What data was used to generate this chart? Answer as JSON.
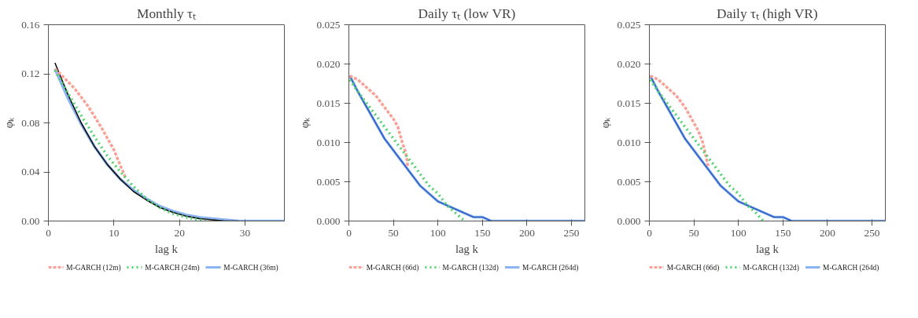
{
  "chart_data": [
    {
      "type": "line",
      "title": "Monthly τₜ",
      "xlabel": "lag k",
      "ylabel": "φₖ",
      "xlim": [
        0,
        36
      ],
      "ylim": [
        0,
        0.16
      ],
      "xticks": [
        0,
        10,
        20,
        30
      ],
      "yticks": [
        {
          "value": 0,
          "label": "0.00"
        },
        0.04,
        0.08,
        0.12,
        0.16
      ],
      "grid": false,
      "legend": "bottom",
      "series": [
        {
          "name": "M-GARCH (12m)",
          "color": "#f9a097",
          "line_style": "dashed",
          "x": [
            1,
            2,
            4,
            6,
            8,
            10,
            11,
            11.8
          ],
          "values": [
            0.124,
            0.119,
            0.108,
            0.094,
            0.077,
            0.058,
            0.045,
            0.035
          ]
        },
        {
          "name": "M-GARCH (24m)",
          "color": "#4fd36d",
          "line_style": "dotted",
          "x": [
            1,
            3,
            5,
            7,
            9,
            11,
            13,
            15,
            17,
            19,
            21,
            23,
            24
          ],
          "values": [
            0.123,
            0.104,
            0.086,
            0.069,
            0.053,
            0.04,
            0.028,
            0.018,
            0.011,
            0.006,
            0.003,
            0.001,
            0
          ]
        },
        {
          "name": "M-GARCH (36m)",
          "color": "#8cb4f2",
          "line_style": "solid",
          "x": [
            1,
            3,
            5,
            7,
            9,
            11,
            13,
            15,
            17,
            19,
            21,
            23,
            25,
            27,
            29,
            31,
            33,
            36
          ],
          "values": [
            0.124,
            0.1,
            0.079,
            0.061,
            0.046,
            0.034,
            0.025,
            0.018,
            0.012,
            0.008,
            0.005,
            0.003,
            0.002,
            0.001,
            0,
            0,
            0,
            0
          ]
        },
        {
          "color": "#111111",
          "line_style": "solid",
          "x": [
            1,
            3,
            5,
            7,
            9,
            11,
            13,
            15,
            17,
            19,
            21,
            23,
            25,
            27,
            29
          ],
          "values": [
            0.129,
            0.103,
            0.08,
            0.061,
            0.046,
            0.034,
            0.024,
            0.017,
            0.011,
            0.007,
            0.004,
            0.002,
            0.001,
            0,
            0
          ]
        }
      ]
    },
    {
      "type": "line",
      "title": "Daily τₜ (low VR)",
      "xlabel": "lag k",
      "ylabel": "φₖ",
      "xlim": [
        0,
        265
      ],
      "ylim": [
        0,
        0.025
      ],
      "xticks": [
        0,
        50,
        100,
        150,
        200,
        250
      ],
      "yticks": [
        {
          "value": 0,
          "label": "0.000"
        },
        0.005,
        {
          "value": 0.01,
          "label": "0.010"
        },
        0.015,
        {
          "value": 0.02,
          "label": "0.020"
        },
        0.025
      ],
      "grid": false,
      "legend": "bottom",
      "series": [
        {
          "name": "M-GARCH (66d)",
          "color": "#f9a097",
          "line_style": "dashed",
          "x": [
            1,
            10,
            20,
            30,
            40,
            50,
            55,
            60,
            63,
            65,
            66
          ],
          "values": [
            0.0185,
            0.018,
            0.017,
            0.016,
            0.0145,
            0.013,
            0.012,
            0.01,
            0.009,
            0.008,
            0.007
          ]
        },
        {
          "name": "M-GARCH (132d)",
          "color": "#4fd36d",
          "line_style": "dotted",
          "x": [
            1,
            10,
            20,
            30,
            40,
            50,
            60,
            70,
            80,
            90,
            100,
            110,
            120,
            130
          ],
          "values": [
            0.018,
            0.0165,
            0.015,
            0.0135,
            0.012,
            0.0105,
            0.009,
            0.0075,
            0.006,
            0.0045,
            0.0035,
            0.002,
            0.001,
            0
          ]
        },
        {
          "name": "M-GARCH (264d)",
          "color": "#8cb4f2",
          "line_style": "solid",
          "x": [
            1,
            10,
            20,
            30,
            40,
            50,
            60,
            70,
            80,
            90,
            100,
            110,
            120,
            130,
            140,
            150,
            160,
            175,
            200,
            265
          ],
          "values": [
            0.0185,
            0.0165,
            0.0145,
            0.0125,
            0.0105,
            0.009,
            0.0075,
            0.006,
            0.0045,
            0.0035,
            0.0025,
            0.002,
            0.0015,
            0.001,
            0.0005,
            0.0005,
            0,
            0,
            0,
            0
          ]
        },
        {
          "color": "#2f5fbf",
          "line_style": "solid",
          "x": [
            1,
            10,
            20,
            30,
            40,
            50,
            60,
            70,
            80,
            90,
            100,
            110,
            120,
            130,
            140,
            150,
            160,
            175,
            200,
            265
          ],
          "values": [
            0.0185,
            0.0165,
            0.0145,
            0.0125,
            0.0105,
            0.009,
            0.0075,
            0.006,
            0.0045,
            0.0035,
            0.0025,
            0.002,
            0.0015,
            0.001,
            0.0005,
            0.0005,
            0,
            0,
            0,
            0
          ]
        }
      ]
    },
    {
      "type": "line",
      "title": "Daily τₜ (high VR)",
      "xlabel": "lag k",
      "ylabel": "φₖ",
      "xlim": [
        0,
        265
      ],
      "ylim": [
        0,
        0.025
      ],
      "xticks": [
        0,
        50,
        100,
        150,
        200,
        250
      ],
      "yticks": [
        {
          "value": 0,
          "label": "0.000"
        },
        0.005,
        {
          "value": 0.01,
          "label": "0.010"
        },
        0.015,
        {
          "value": 0.02,
          "label": "0.020"
        },
        0.025
      ],
      "grid": false,
      "legend": "bottom",
      "series": [
        {
          "name": "M-GARCH (66d)",
          "color": "#f9a097",
          "line_style": "dashed",
          "x": [
            1,
            10,
            20,
            30,
            40,
            50,
            55,
            60,
            63,
            65,
            66
          ],
          "values": [
            0.0185,
            0.018,
            0.017,
            0.016,
            0.0145,
            0.0125,
            0.0115,
            0.01,
            0.0085,
            0.0075,
            0.007
          ]
        },
        {
          "name": "M-GARCH (132d)",
          "color": "#4fd36d",
          "line_style": "dotted",
          "x": [
            1,
            10,
            20,
            30,
            40,
            50,
            60,
            70,
            80,
            90,
            100,
            110,
            120,
            128
          ],
          "values": [
            0.018,
            0.0165,
            0.015,
            0.0135,
            0.012,
            0.0105,
            0.009,
            0.0075,
            0.006,
            0.0045,
            0.0035,
            0.002,
            0.001,
            0
          ]
        },
        {
          "name": "M-GARCH (264d)",
          "color": "#8cb4f2",
          "line_style": "solid",
          "x": [
            1,
            10,
            20,
            30,
            40,
            50,
            60,
            70,
            80,
            90,
            100,
            110,
            120,
            130,
            140,
            150,
            160,
            175,
            200,
            265
          ],
          "values": [
            0.0185,
            0.0165,
            0.0145,
            0.0125,
            0.0105,
            0.009,
            0.0075,
            0.006,
            0.0045,
            0.0035,
            0.0025,
            0.002,
            0.0015,
            0.001,
            0.0005,
            0.0005,
            0,
            0,
            0,
            0
          ]
        },
        {
          "color": "#2f5fbf",
          "line_style": "solid",
          "x": [
            1,
            10,
            20,
            30,
            40,
            50,
            60,
            70,
            80,
            90,
            100,
            110,
            120,
            130,
            140,
            150,
            160,
            175,
            200,
            265
          ],
          "values": [
            0.0185,
            0.0165,
            0.0145,
            0.0125,
            0.0105,
            0.009,
            0.0075,
            0.006,
            0.0045,
            0.0035,
            0.0025,
            0.002,
            0.0015,
            0.001,
            0.0005,
            0.0005,
            0,
            0,
            0,
            0
          ]
        }
      ]
    }
  ]
}
